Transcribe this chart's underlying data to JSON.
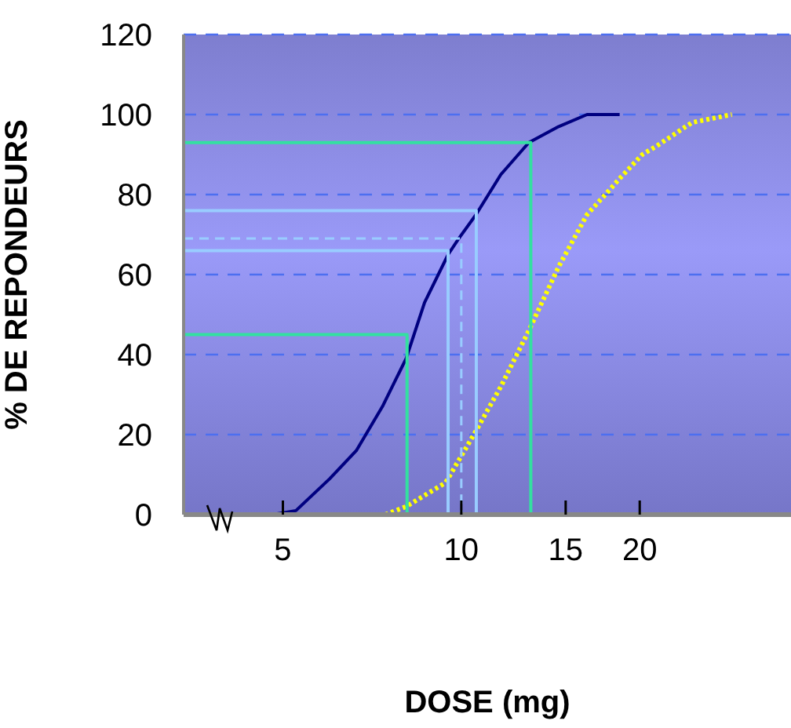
{
  "chart_data": {
    "type": "line",
    "xlabel": "DOSE (mg)",
    "ylabel": "% DE REPONDEURS",
    "log": "x",
    "xlim": [
      3.4,
      36
    ],
    "xticks": [
      5,
      10,
      15,
      20
    ],
    "ylim": [
      0,
      120
    ],
    "yticks": [
      0,
      20,
      40,
      60,
      80,
      100,
      120
    ],
    "grid": "y",
    "series": [
      {
        "color": "#000080",
        "line_style": "solid",
        "x": [
          4.33,
          4.8,
          5.26,
          6.0,
          6.65,
          7.36,
          8.07,
          8.67,
          9.5,
          9.9,
          10.59,
          11.66,
          13.0,
          14.6,
          16.3,
          18.5
        ],
        "values": [
          0,
          0,
          1,
          9,
          16,
          27,
          39,
          53,
          65,
          69,
          75,
          85,
          93,
          97,
          100,
          100
        ]
      },
      {
        "color": "#ffff00",
        "line_style": "dotted",
        "x": [
          7.44,
          8.07,
          9.41,
          10.5,
          11.66,
          13.0,
          14.6,
          16.3,
          17.5,
          18.5,
          20.2,
          21.3,
          24.5,
          28.6
        ],
        "values": [
          0,
          2,
          8,
          20,
          32,
          46,
          62,
          75,
          80,
          84,
          90,
          92,
          98,
          100
        ]
      },
      {
        "color": "#33e0a0",
        "line_style": "solid",
        "x": [
          3.4,
          8.1,
          8.1
        ],
        "values": [
          45,
          45,
          0
        ]
      },
      {
        "color": "#99ccff",
        "line_style": "solid",
        "x": [
          3.4,
          9.5,
          9.5
        ],
        "values": [
          66,
          66,
          0
        ]
      },
      {
        "color": "#99ccff",
        "line_style": "dashed",
        "x": [
          3.4,
          10,
          10
        ],
        "values": [
          69,
          69,
          0
        ]
      },
      {
        "color": "#99ccff",
        "line_style": "solid",
        "x": [
          3.4,
          10.6,
          10.6
        ],
        "values": [
          76,
          76,
          0
        ]
      },
      {
        "color": "#33e0a0",
        "line_style": "solid",
        "x": [
          3.4,
          13.1,
          13.1
        ],
        "values": [
          93,
          93,
          0
        ]
      }
    ]
  }
}
